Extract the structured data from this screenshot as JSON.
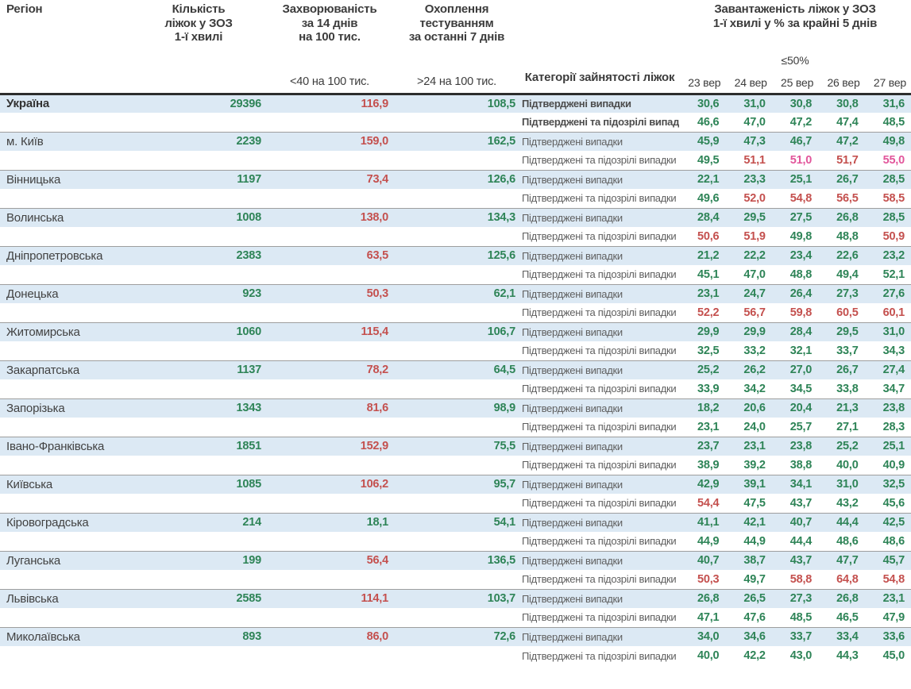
{
  "palette": {
    "green": "#2e8457",
    "red": "#c4504e",
    "pink": "#e2569b",
    "row_blue": "#dce9f4",
    "header_text": "#3c3c3c",
    "label_text": "#5f5f5f",
    "block_border": "#9e9e9e",
    "header_rule": "#2d2d2d"
  },
  "chart_data": {
    "type": "table",
    "header": {
      "region": "Регіон",
      "beds": "Кількість\nліжок у ЗОЗ\n1-ї хвилі",
      "incidence": "Захворюваність\nза 14 днів\nна 100 тис.",
      "testing": "Охоплення\nтестуванням\nза останні 7 днів",
      "category": "Категорії зайнятості ліжок",
      "load": "Завантаженість ліжок у ЗОЗ\n1-ї хвилі у % за крайні 5 днів",
      "incidence_sub": "<40 на 100 тис.",
      "testing_sub": ">24 на 100 тис.",
      "threshold": "≤50%"
    },
    "dates": [
      "23 вер",
      "24 вер",
      "25 вер",
      "26 вер",
      "27 вер"
    ],
    "row_labels": {
      "confirmed": "Підтверджені випадки",
      "suspected": "Підтверджені та підозрілі випадки"
    },
    "regions": [
      {
        "name": "Україна",
        "emphasis": true,
        "beds": "29396",
        "beds_color": "g",
        "incidence": "116,9",
        "incidence_color": "r",
        "testing": "108,5",
        "testing_color": "g",
        "confirmed": [
          "30,6",
          "31,0",
          "30,8",
          "30,8",
          "31,6"
        ],
        "confirmed_colors": [
          "g",
          "g",
          "g",
          "g",
          "g"
        ],
        "suspected": [
          "46,6",
          "47,0",
          "47,2",
          "47,4",
          "48,5"
        ],
        "suspected_colors": [
          "g",
          "g",
          "g",
          "g",
          "g"
        ]
      },
      {
        "name": "м. Київ",
        "emphasis": false,
        "beds": "2239",
        "beds_color": "g",
        "incidence": "159,0",
        "incidence_color": "r",
        "testing": "162,5",
        "testing_color": "g",
        "confirmed": [
          "45,9",
          "47,3",
          "46,7",
          "47,2",
          "49,8"
        ],
        "confirmed_colors": [
          "g",
          "g",
          "g",
          "g",
          "g"
        ],
        "suspected": [
          "49,5",
          "51,1",
          "51,0",
          "51,7",
          "55,0"
        ],
        "suspected_colors": [
          "g",
          "r",
          "p",
          "r",
          "p"
        ]
      },
      {
        "name": "Вінницька",
        "emphasis": false,
        "beds": "1197",
        "beds_color": "g",
        "incidence": "73,4",
        "incidence_color": "r",
        "testing": "126,6",
        "testing_color": "g",
        "confirmed": [
          "22,1",
          "23,3",
          "25,1",
          "26,7",
          "28,5"
        ],
        "confirmed_colors": [
          "g",
          "g",
          "g",
          "g",
          "g"
        ],
        "suspected": [
          "49,6",
          "52,0",
          "54,8",
          "56,5",
          "58,5"
        ],
        "suspected_colors": [
          "g",
          "r",
          "r",
          "r",
          "r"
        ]
      },
      {
        "name": "Волинська",
        "emphasis": false,
        "beds": "1008",
        "beds_color": "g",
        "incidence": "138,0",
        "incidence_color": "r",
        "testing": "134,3",
        "testing_color": "g",
        "confirmed": [
          "28,4",
          "29,5",
          "27,5",
          "26,8",
          "28,5"
        ],
        "confirmed_colors": [
          "g",
          "g",
          "g",
          "g",
          "g"
        ],
        "suspected": [
          "50,6",
          "51,9",
          "49,8",
          "48,8",
          "50,9"
        ],
        "suspected_colors": [
          "r",
          "r",
          "g",
          "g",
          "r"
        ]
      },
      {
        "name": "Дніпропетровська",
        "emphasis": false,
        "beds": "2383",
        "beds_color": "g",
        "incidence": "63,5",
        "incidence_color": "r",
        "testing": "125,6",
        "testing_color": "g",
        "confirmed": [
          "21,2",
          "22,2",
          "23,4",
          "22,6",
          "23,2"
        ],
        "confirmed_colors": [
          "g",
          "g",
          "g",
          "g",
          "g"
        ],
        "suspected": [
          "45,1",
          "47,0",
          "48,8",
          "49,4",
          "52,1"
        ],
        "suspected_colors": [
          "g",
          "g",
          "g",
          "g",
          "g"
        ]
      },
      {
        "name": "Донецька",
        "emphasis": false,
        "beds": "923",
        "beds_color": "g",
        "incidence": "50,3",
        "incidence_color": "r",
        "testing": "62,1",
        "testing_color": "g",
        "confirmed": [
          "23,1",
          "24,7",
          "26,4",
          "27,3",
          "27,6"
        ],
        "confirmed_colors": [
          "g",
          "g",
          "g",
          "g",
          "g"
        ],
        "suspected": [
          "52,2",
          "56,7",
          "59,8",
          "60,5",
          "60,1"
        ],
        "suspected_colors": [
          "r",
          "r",
          "r",
          "r",
          "r"
        ]
      },
      {
        "name": "Житомирська",
        "emphasis": false,
        "beds": "1060",
        "beds_color": "g",
        "incidence": "115,4",
        "incidence_color": "r",
        "testing": "106,7",
        "testing_color": "g",
        "confirmed": [
          "29,9",
          "29,9",
          "28,4",
          "29,5",
          "31,0"
        ],
        "confirmed_colors": [
          "g",
          "g",
          "g",
          "g",
          "g"
        ],
        "suspected": [
          "32,5",
          "33,2",
          "32,1",
          "33,7",
          "34,3"
        ],
        "suspected_colors": [
          "g",
          "g",
          "g",
          "g",
          "g"
        ]
      },
      {
        "name": "Закарпатська",
        "emphasis": false,
        "beds": "1137",
        "beds_color": "g",
        "incidence": "78,2",
        "incidence_color": "r",
        "testing": "64,5",
        "testing_color": "g",
        "confirmed": [
          "25,2",
          "26,2",
          "27,0",
          "26,7",
          "27,4"
        ],
        "confirmed_colors": [
          "g",
          "g",
          "g",
          "g",
          "g"
        ],
        "suspected": [
          "33,9",
          "34,2",
          "34,5",
          "33,8",
          "34,7"
        ],
        "suspected_colors": [
          "g",
          "g",
          "g",
          "g",
          "g"
        ]
      },
      {
        "name": "Запорізька",
        "emphasis": false,
        "beds": "1343",
        "beds_color": "g",
        "incidence": "81,6",
        "incidence_color": "r",
        "testing": "98,9",
        "testing_color": "g",
        "confirmed": [
          "18,2",
          "20,6",
          "20,4",
          "21,3",
          "23,8"
        ],
        "confirmed_colors": [
          "g",
          "g",
          "g",
          "g",
          "g"
        ],
        "suspected": [
          "23,1",
          "24,0",
          "25,7",
          "27,1",
          "28,3"
        ],
        "suspected_colors": [
          "g",
          "g",
          "g",
          "g",
          "g"
        ]
      },
      {
        "name": "Івано-Франківська",
        "emphasis": false,
        "beds": "1851",
        "beds_color": "g",
        "incidence": "152,9",
        "incidence_color": "r",
        "testing": "75,5",
        "testing_color": "g",
        "confirmed": [
          "23,7",
          "23,1",
          "23,8",
          "25,2",
          "25,1"
        ],
        "confirmed_colors": [
          "g",
          "g",
          "g",
          "g",
          "g"
        ],
        "suspected": [
          "38,9",
          "39,2",
          "38,8",
          "40,0",
          "40,9"
        ],
        "suspected_colors": [
          "g",
          "g",
          "g",
          "g",
          "g"
        ]
      },
      {
        "name": "Київська",
        "emphasis": false,
        "beds": "1085",
        "beds_color": "g",
        "incidence": "106,2",
        "incidence_color": "r",
        "testing": "95,7",
        "testing_color": "g",
        "confirmed": [
          "42,9",
          "39,1",
          "34,1",
          "31,0",
          "32,5"
        ],
        "confirmed_colors": [
          "g",
          "g",
          "g",
          "g",
          "g"
        ],
        "suspected": [
          "54,4",
          "47,5",
          "43,7",
          "43,2",
          "45,6"
        ],
        "suspected_colors": [
          "r",
          "g",
          "g",
          "g",
          "g"
        ]
      },
      {
        "name": "Кіровоградська",
        "emphasis": false,
        "beds": "214",
        "beds_color": "g",
        "incidence": "18,1",
        "incidence_color": "g",
        "testing": "54,1",
        "testing_color": "g",
        "confirmed": [
          "41,1",
          "42,1",
          "40,7",
          "44,4",
          "42,5"
        ],
        "confirmed_colors": [
          "g",
          "g",
          "g",
          "g",
          "g"
        ],
        "suspected": [
          "44,9",
          "44,9",
          "44,4",
          "48,6",
          "48,6"
        ],
        "suspected_colors": [
          "g",
          "g",
          "g",
          "g",
          "g"
        ]
      },
      {
        "name": "Луганська",
        "emphasis": false,
        "beds": "199",
        "beds_color": "g",
        "incidence": "56,4",
        "incidence_color": "r",
        "testing": "136,5",
        "testing_color": "g",
        "confirmed": [
          "40,7",
          "38,7",
          "43,7",
          "47,7",
          "45,7"
        ],
        "confirmed_colors": [
          "g",
          "g",
          "g",
          "g",
          "g"
        ],
        "suspected": [
          "50,3",
          "49,7",
          "58,8",
          "64,8",
          "54,8"
        ],
        "suspected_colors": [
          "r",
          "g",
          "r",
          "r",
          "r"
        ]
      },
      {
        "name": "Львівська",
        "emphasis": false,
        "beds": "2585",
        "beds_color": "g",
        "incidence": "114,1",
        "incidence_color": "r",
        "testing": "103,7",
        "testing_color": "g",
        "confirmed": [
          "26,8",
          "26,5",
          "27,3",
          "26,8",
          "23,1"
        ],
        "confirmed_colors": [
          "g",
          "g",
          "g",
          "g",
          "g"
        ],
        "suspected": [
          "47,1",
          "47,6",
          "48,5",
          "46,5",
          "47,9"
        ],
        "suspected_colors": [
          "g",
          "g",
          "g",
          "g",
          "g"
        ]
      },
      {
        "name": "Миколаївська",
        "emphasis": false,
        "beds": "893",
        "beds_color": "g",
        "incidence": "86,0",
        "incidence_color": "r",
        "testing": "72,6",
        "testing_color": "g",
        "confirmed": [
          "34,0",
          "34,6",
          "33,7",
          "33,4",
          "33,6"
        ],
        "confirmed_colors": [
          "g",
          "g",
          "g",
          "g",
          "g"
        ],
        "suspected": [
          "40,0",
          "42,2",
          "43,0",
          "44,3",
          "45,0"
        ],
        "suspected_colors": [
          "g",
          "g",
          "g",
          "g",
          "g"
        ]
      }
    ]
  }
}
